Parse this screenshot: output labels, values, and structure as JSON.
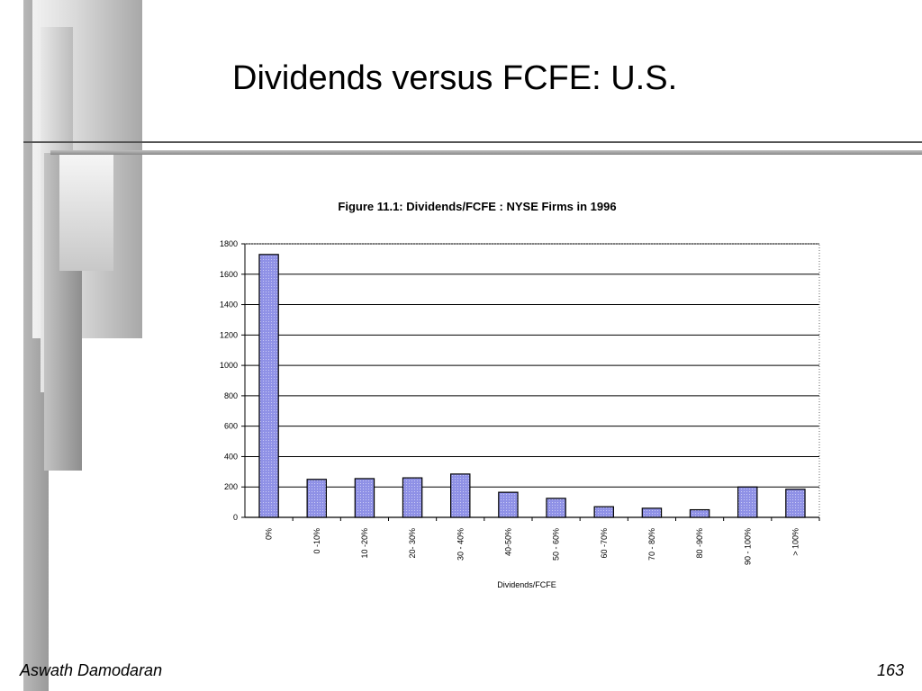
{
  "slide": {
    "title": "Dividends versus FCFE: U.S.",
    "footer_author": "Aswath Damodaran",
    "footer_page": "163"
  },
  "colors": {
    "bar_fill": "#8f91e6",
    "bar_stroke": "#000000",
    "grid": "#000000"
  },
  "chart_data": {
    "type": "bar",
    "title": "Figure 11.1: Dividends/FCFE : NYSE Firms in 1996",
    "xlabel": "Dividends/FCFE",
    "ylabel": "",
    "ylim": [
      0,
      1800
    ],
    "yticks": [
      0,
      200,
      400,
      600,
      800,
      1000,
      1200,
      1400,
      1600,
      1800
    ],
    "grid": true,
    "categories": [
      "0%",
      "0 -10%",
      "10 -20%",
      "20- 30%",
      "30 - 40%",
      "40-50%",
      "50 - 60%",
      "60 -70%",
      "70 - 80%",
      "80 -90%",
      "90 - 100%",
      "> 100%"
    ],
    "values": [
      1730,
      250,
      255,
      260,
      285,
      165,
      125,
      70,
      60,
      50,
      200,
      185
    ]
  }
}
